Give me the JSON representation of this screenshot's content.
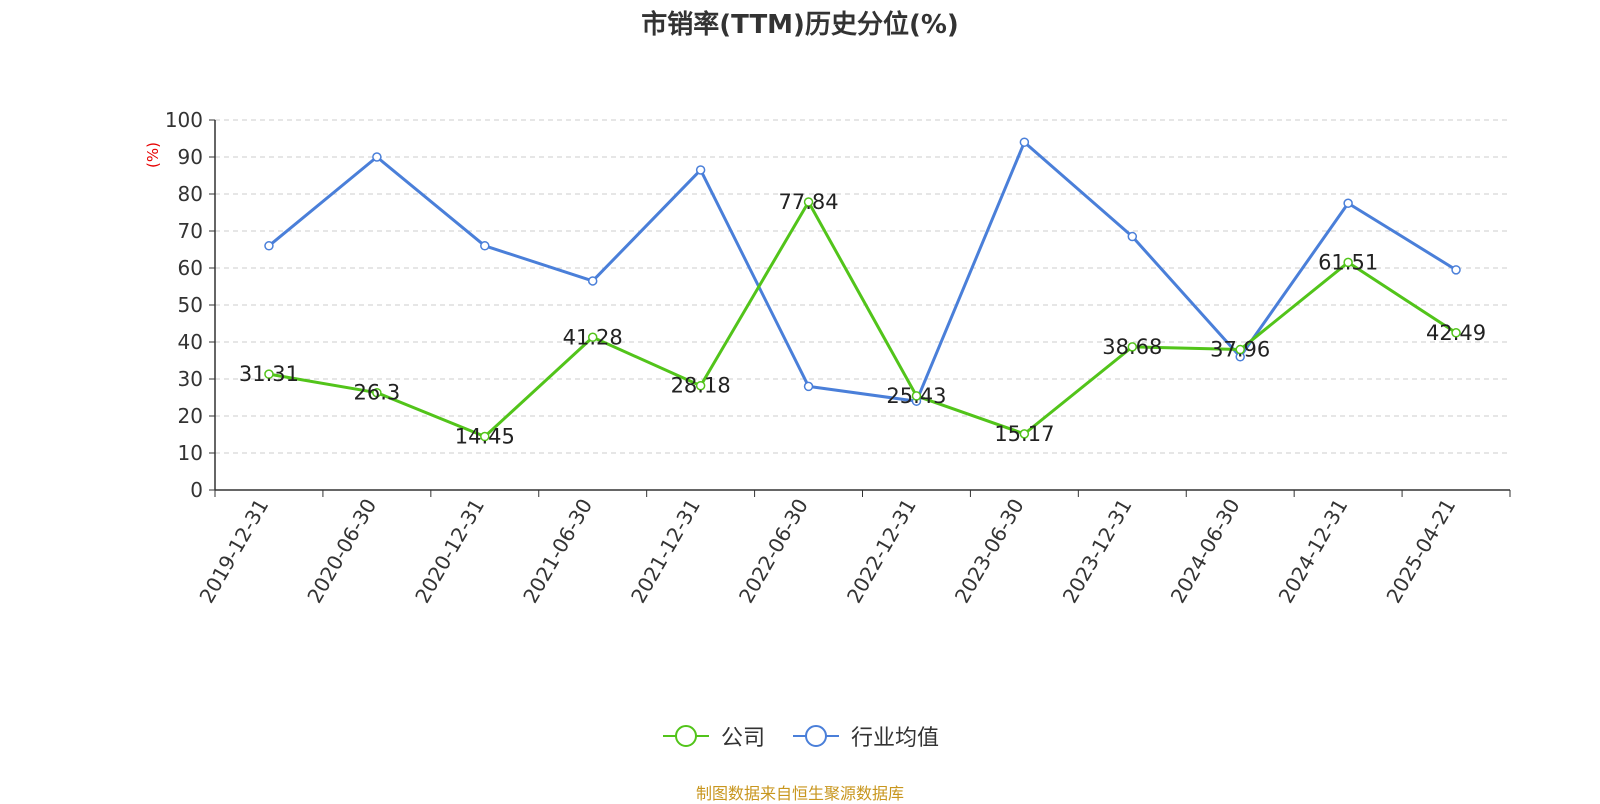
{
  "chart_data": {
    "type": "line",
    "title": "市销率(TTM)历史分位(%)",
    "ylabel": "(%)",
    "ylim": [
      0,
      100
    ],
    "yticks": [
      0,
      10,
      20,
      30,
      40,
      50,
      60,
      70,
      80,
      90,
      100
    ],
    "grid": true,
    "legend_position": "bottom",
    "categories": [
      "2019-12-31",
      "2020-06-30",
      "2020-12-31",
      "2021-06-30",
      "2021-12-31",
      "2022-06-30",
      "2022-12-31",
      "2023-06-30",
      "2023-12-31",
      "2024-06-30",
      "2024-12-31",
      "2025-04-21"
    ],
    "series": [
      {
        "name": "公司",
        "color": "#52c41a",
        "show_labels": true,
        "values": [
          31.31,
          26.3,
          14.45,
          41.28,
          28.18,
          77.84,
          25.43,
          15.17,
          38.68,
          37.96,
          61.51,
          42.49
        ]
      },
      {
        "name": "行业均值",
        "color": "#4a7fd9",
        "show_labels": false,
        "values": [
          66,
          90,
          66,
          56.5,
          86.5,
          28,
          24,
          94,
          68.5,
          36,
          77.5,
          59.5
        ]
      }
    ],
    "source": "制图数据来自恒生聚源数据库"
  }
}
